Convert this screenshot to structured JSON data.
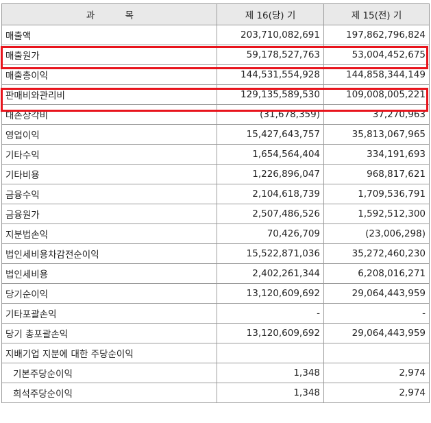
{
  "header": {
    "subject": "과 목",
    "period_current": "제 16(당) 기",
    "period_previous": "제 15(전) 기"
  },
  "rows": [
    {
      "label": "매출액",
      "current": "203,710,082,691",
      "previous": "197,862,796,824"
    },
    {
      "label": "매출원가",
      "current": "59,178,527,763",
      "previous": "53,004,452,675"
    },
    {
      "label": "매출총이익",
      "current": "144,531,554,928",
      "previous": "144,858,344,149"
    },
    {
      "label": "판매비와관리비",
      "current": "129,135,589,530",
      "previous": "109,008,005,221"
    },
    {
      "label": "대손상각비",
      "current": "(31,678,359)",
      "previous": "37,270,963"
    },
    {
      "label": "영업이익",
      "current": "15,427,643,757",
      "previous": "35,813,067,965"
    },
    {
      "label": "기타수익",
      "current": "1,654,564,404",
      "previous": "334,191,693"
    },
    {
      "label": "기타비용",
      "current": "1,226,896,047",
      "previous": "968,817,621"
    },
    {
      "label": "금융수익",
      "current": "2,104,618,739",
      "previous": "1,709,536,791"
    },
    {
      "label": "금융원가",
      "current": "2,507,486,526",
      "previous": "1,592,512,300"
    },
    {
      "label": "지분법손익",
      "current": "70,426,709",
      "previous": "(23,006,298)"
    },
    {
      "label": "법인세비용차감전순이익",
      "current": "15,522,871,036",
      "previous": "35,272,460,230"
    },
    {
      "label": "법인세비용",
      "current": "2,402,261,344",
      "previous": "6,208,016,271"
    },
    {
      "label": "당기순이익",
      "current": "13,120,609,692",
      "previous": "29,064,443,959"
    },
    {
      "label": "기타포괄손익",
      "current": "-",
      "previous": "-"
    },
    {
      "label": "당기 총포괄손익",
      "current": "13,120,609,692",
      "previous": "29,064,443,959"
    },
    {
      "label": "지배기업 지분에 대한 주당순이익",
      "current": "",
      "previous": ""
    },
    {
      "label": "기본주당순이익",
      "current": "1,348",
      "previous": "2,974"
    },
    {
      "label": "희석주당순이익",
      "current": "1,348",
      "previous": "2,974"
    }
  ],
  "highlight_color": "#e8141c"
}
